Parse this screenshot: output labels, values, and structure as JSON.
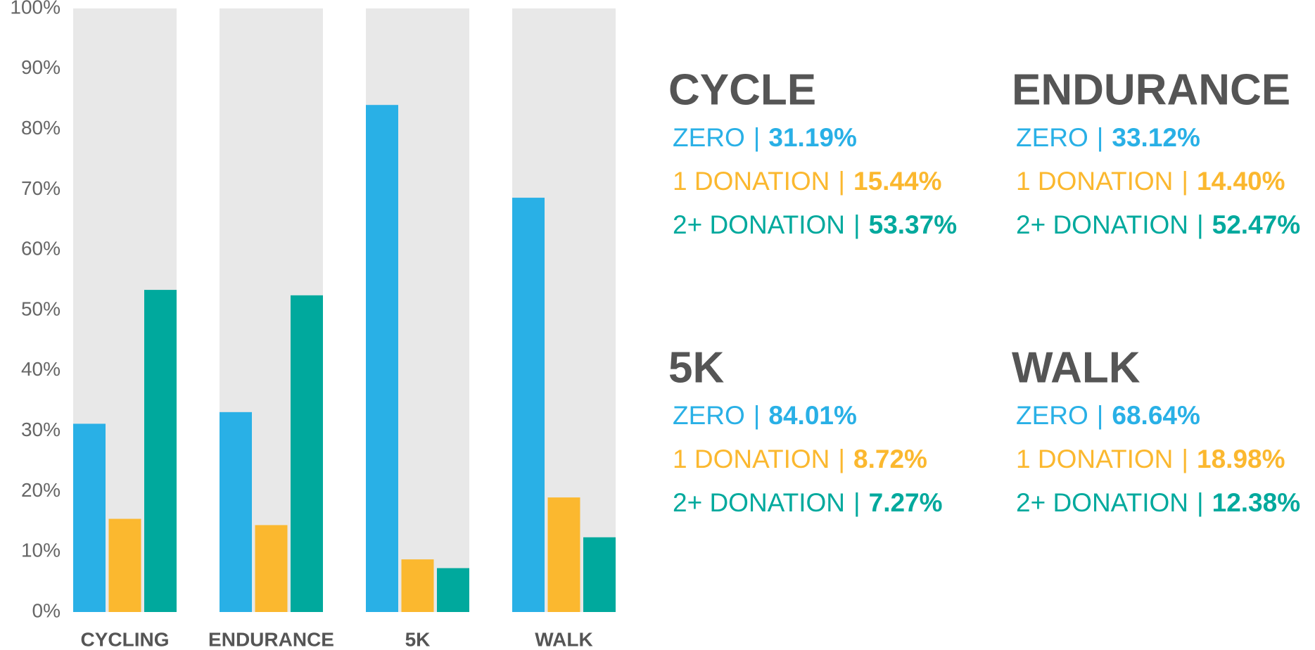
{
  "chart_data": {
    "type": "bar",
    "categories": [
      "CYCLING",
      "ENDURANCE",
      "5K",
      "WALK"
    ],
    "series": [
      {
        "name": "ZERO",
        "color": "#29b0e6",
        "values": [
          31.19,
          33.12,
          84.01,
          68.64
        ],
        "value_labels": [
          "31.19%",
          "33.12%",
          "84.01%",
          "68.64%"
        ]
      },
      {
        "name": "1 DONATION",
        "color": "#fbb82f",
        "values": [
          15.44,
          14.4,
          8.72,
          18.98
        ],
        "value_labels": [
          "15.44%",
          "14.40%",
          "8.72%",
          "18.98%"
        ]
      },
      {
        "name": "2+ DONATION",
        "color": "#00a99d",
        "values": [
          53.37,
          52.47,
          7.27,
          12.38
        ],
        "value_labels": [
          "53.37%",
          "52.47%",
          "7.27%",
          "12.38%"
        ]
      }
    ],
    "ylim": [
      0,
      100
    ],
    "yticks": [
      {
        "value": 0,
        "label": "0%"
      },
      {
        "value": 10,
        "label": "10%"
      },
      {
        "value": 20,
        "label": "20%"
      },
      {
        "value": 30,
        "label": "30%"
      },
      {
        "value": 40,
        "label": "40%"
      },
      {
        "value": 50,
        "label": "50%"
      },
      {
        "value": 60,
        "label": "60%"
      },
      {
        "value": 70,
        "label": "70%"
      },
      {
        "value": 80,
        "label": "80%"
      },
      {
        "value": 90,
        "label": "90%"
      },
      {
        "value": 100,
        "label": "100%"
      }
    ],
    "panel_titles": [
      "CYCLE",
      "ENDURANCE",
      "5K",
      "WALK"
    ],
    "separator": "|"
  }
}
